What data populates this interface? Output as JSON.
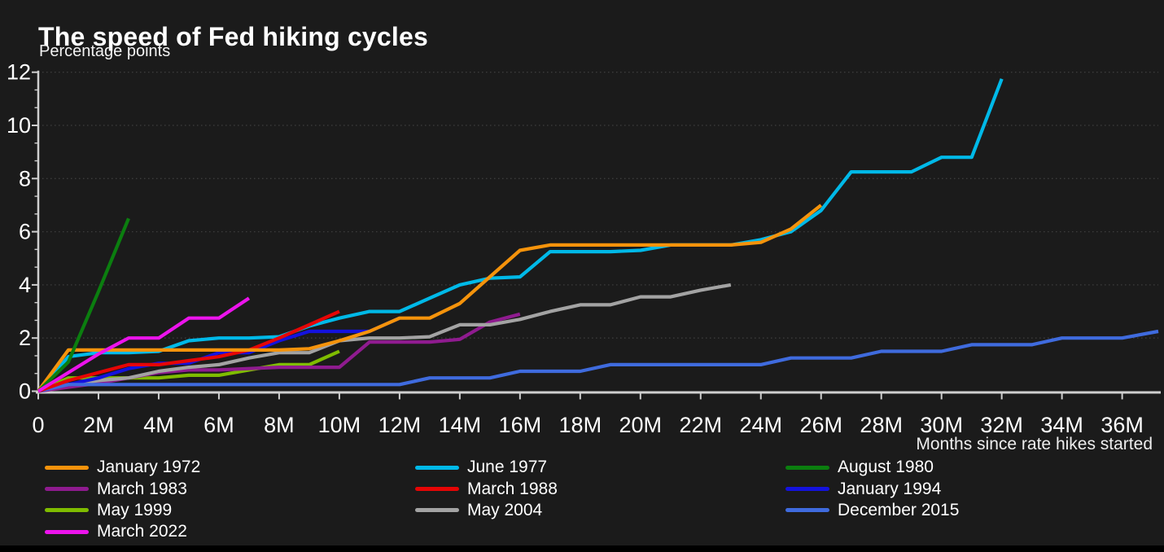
{
  "page": {
    "background": "#1B1B1B",
    "bottom_bar_color": "#000000"
  },
  "header": {
    "title": "The speed of Fed hiking cycles",
    "subtitle": "Percentage points"
  },
  "chart_data": {
    "type": "line",
    "title": "The speed of Fed hiking cycles",
    "subtitle": "Percentage points",
    "xlabel": "Months since rate hikes started",
    "ylabel": "Percentage points",
    "xlim": [
      0,
      37.2
    ],
    "ylim": [
      0,
      12
    ],
    "x_tick_interval_months": 2,
    "x_tick_labels": [
      "0",
      "2M",
      "4M",
      "6M",
      "8M",
      "10M",
      "12M",
      "14M",
      "16M",
      "18M",
      "20M",
      "22M",
      "24M",
      "26M",
      "28M",
      "30M",
      "32M",
      "34M",
      "36M"
    ],
    "y_ticks": [
      0,
      2,
      4,
      6,
      8,
      10,
      12
    ],
    "y_minor_ticks_per_interval": 2,
    "grid": "horizontal-dotted",
    "grid_values": [
      2,
      4,
      6,
      8,
      10,
      12
    ],
    "axis_color": "#CFCFCF",
    "grid_color": "#3D3D3D",
    "text_color": "#FFFFFF",
    "legend_position": "bottom-three-columns",
    "series": [
      {
        "name": "May 1999",
        "color": "#7FBC00",
        "points": [
          [
            0,
            0
          ],
          [
            1,
            0.5
          ],
          [
            2,
            0.5
          ],
          [
            3,
            0.5
          ],
          [
            4,
            0.5
          ],
          [
            5,
            0.6
          ],
          [
            6,
            0.6
          ],
          [
            7,
            0.8
          ],
          [
            8,
            1
          ],
          [
            9,
            1
          ],
          [
            10,
            1.5
          ]
        ]
      },
      {
        "name": "March 1983",
        "color": "#8F1B8F",
        "points": [
          [
            0,
            0
          ],
          [
            1,
            0.15
          ],
          [
            2,
            0.3
          ],
          [
            3,
            0.5
          ],
          [
            4,
            0.7
          ],
          [
            5,
            0.8
          ],
          [
            6,
            0.8
          ],
          [
            7,
            0.85
          ],
          [
            8,
            0.9
          ],
          [
            9,
            0.9
          ],
          [
            10,
            0.9
          ],
          [
            11,
            1.85
          ],
          [
            12,
            1.85
          ],
          [
            13,
            1.85
          ],
          [
            14,
            1.95
          ],
          [
            15,
            2.6
          ],
          [
            16,
            2.9
          ]
        ]
      },
      {
        "name": "May 2004",
        "color": "#A3A3A3",
        "points": [
          [
            0,
            0
          ],
          [
            1,
            0.25
          ],
          [
            2,
            0.4
          ],
          [
            3,
            0.5
          ],
          [
            4,
            0.75
          ],
          [
            5,
            0.9
          ],
          [
            6,
            1
          ],
          [
            7,
            1.25
          ],
          [
            8,
            1.45
          ],
          [
            9,
            1.45
          ],
          [
            10,
            1.9
          ],
          [
            11,
            2
          ],
          [
            12,
            2
          ],
          [
            13,
            2.05
          ],
          [
            14,
            2.5
          ],
          [
            15,
            2.5
          ],
          [
            16,
            2.7
          ],
          [
            17,
            3
          ],
          [
            18,
            3.25
          ],
          [
            19,
            3.25
          ],
          [
            20,
            3.55
          ],
          [
            21,
            3.55
          ],
          [
            22,
            3.8
          ],
          [
            23,
            4
          ]
        ]
      },
      {
        "name": "January 1994",
        "color": "#1412DE",
        "points": [
          [
            0,
            0
          ],
          [
            1,
            0.25
          ],
          [
            2,
            0.5
          ],
          [
            3,
            0.85
          ],
          [
            4,
            1.05
          ],
          [
            5,
            1.05
          ],
          [
            6,
            1.45
          ],
          [
            7,
            1.45
          ],
          [
            8,
            1.9
          ],
          [
            9,
            2.25
          ],
          [
            10,
            2.25
          ],
          [
            11,
            2.25
          ],
          [
            12,
            2.75
          ]
        ]
      },
      {
        "name": "December 2015",
        "color": "#3F6BDE",
        "points": [
          [
            0,
            0
          ],
          [
            1,
            0.25
          ],
          [
            12,
            0.25
          ],
          [
            13,
            0.5
          ],
          [
            15,
            0.5
          ],
          [
            16,
            0.75
          ],
          [
            18,
            0.75
          ],
          [
            19,
            1
          ],
          [
            24,
            1
          ],
          [
            25,
            1.25
          ],
          [
            27,
            1.25
          ],
          [
            28,
            1.5
          ],
          [
            30,
            1.5
          ],
          [
            31,
            1.75
          ],
          [
            33,
            1.75
          ],
          [
            34,
            2
          ],
          [
            36,
            2
          ],
          [
            37.2,
            2.25
          ]
        ]
      },
      {
        "name": "June 1977",
        "color": "#00B9E8",
        "points": [
          [
            0,
            0
          ],
          [
            1,
            1.3
          ],
          [
            2,
            1.45
          ],
          [
            3,
            1.45
          ],
          [
            4,
            1.5
          ],
          [
            5,
            1.9
          ],
          [
            6,
            2
          ],
          [
            7,
            2
          ],
          [
            8,
            2.05
          ],
          [
            9,
            2.45
          ],
          [
            10,
            2.75
          ],
          [
            11,
            3
          ],
          [
            12,
            3
          ],
          [
            13,
            3.5
          ],
          [
            14,
            4
          ],
          [
            15,
            4.25
          ],
          [
            16,
            4.3
          ],
          [
            17,
            5.25
          ],
          [
            18,
            5.25
          ],
          [
            19,
            5.25
          ],
          [
            20,
            5.3
          ],
          [
            21,
            5.5
          ],
          [
            22,
            5.5
          ],
          [
            23,
            5.5
          ],
          [
            24,
            5.7
          ],
          [
            25,
            6
          ],
          [
            26,
            6.8
          ],
          [
            27,
            8.25
          ],
          [
            28,
            8.25
          ],
          [
            29,
            8.25
          ],
          [
            30,
            8.8
          ],
          [
            31,
            8.8
          ],
          [
            32,
            11.75
          ]
        ]
      },
      {
        "name": "March 1988",
        "color": "#E60505",
        "points": [
          [
            0,
            0
          ],
          [
            1,
            0.4
          ],
          [
            2,
            0.7
          ],
          [
            3,
            1
          ],
          [
            4,
            1
          ],
          [
            5,
            1.15
          ],
          [
            6,
            1.3
          ],
          [
            7,
            1.55
          ],
          [
            8,
            2
          ],
          [
            9,
            2.5
          ],
          [
            10,
            3
          ]
        ]
      },
      {
        "name": "January 1972",
        "color": "#F5930B",
        "points": [
          [
            0,
            0
          ],
          [
            1,
            1.55
          ],
          [
            2,
            1.55
          ],
          [
            3,
            1.55
          ],
          [
            4,
            1.55
          ],
          [
            5,
            1.55
          ],
          [
            6,
            1.55
          ],
          [
            7,
            1.55
          ],
          [
            8,
            1.55
          ],
          [
            9,
            1.6
          ],
          [
            10,
            1.9
          ],
          [
            11,
            2.25
          ],
          [
            12,
            2.75
          ],
          [
            13,
            2.75
          ],
          [
            14,
            3.3
          ],
          [
            15,
            4.3
          ],
          [
            16,
            5.3
          ],
          [
            17,
            5.5
          ],
          [
            18,
            5.5
          ],
          [
            19,
            5.5
          ],
          [
            20,
            5.5
          ],
          [
            21,
            5.5
          ],
          [
            22,
            5.5
          ],
          [
            23,
            5.5
          ],
          [
            24,
            5.6
          ],
          [
            25,
            6.1
          ],
          [
            26,
            7
          ]
        ]
      },
      {
        "name": "August 1980",
        "color": "#0B7E0F",
        "points": [
          [
            0,
            0
          ],
          [
            1,
            1.1
          ],
          [
            2,
            3.75
          ],
          [
            3,
            6.5
          ]
        ]
      },
      {
        "name": "March 2022",
        "color": "#EC13EC",
        "points": [
          [
            0,
            0
          ],
          [
            1,
            0.7
          ],
          [
            2,
            1.4
          ],
          [
            3,
            2
          ],
          [
            4,
            2
          ],
          [
            5,
            2.75
          ],
          [
            6,
            2.75
          ],
          [
            7,
            3.5
          ]
        ]
      }
    ],
    "legend_columns": [
      [
        "January 1972",
        "March 1983",
        "May 1999",
        "March 2022"
      ],
      [
        "June 1977",
        "March 1988",
        "May 2004"
      ],
      [
        "August 1980",
        "January 1994",
        "December 2015"
      ]
    ]
  }
}
